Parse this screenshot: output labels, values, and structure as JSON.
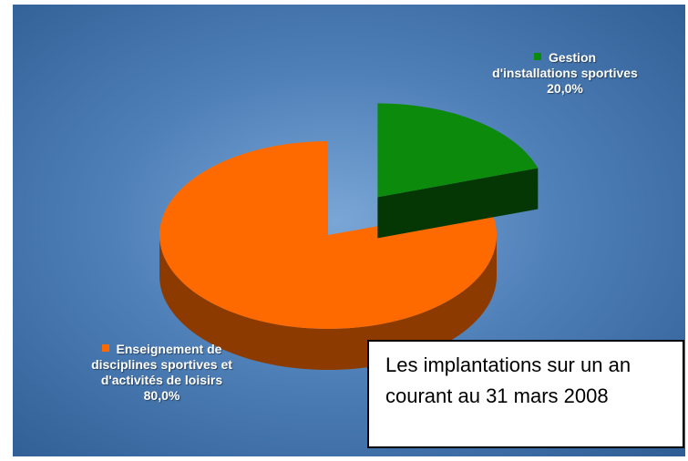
{
  "chart_data": {
    "type": "pie",
    "categories": [
      "Gestion d'installations sportives",
      "Enseignement de disciplines sportives et d'activités de loisirs"
    ],
    "values": [
      20,
      80
    ],
    "value_labels": [
      "20,0%",
      "80,0%"
    ],
    "colors": [
      "#0b8a0b",
      "#ff6a00"
    ],
    "annotation": "Les implantations sur un an courant au 31 mars 2008"
  }
}
